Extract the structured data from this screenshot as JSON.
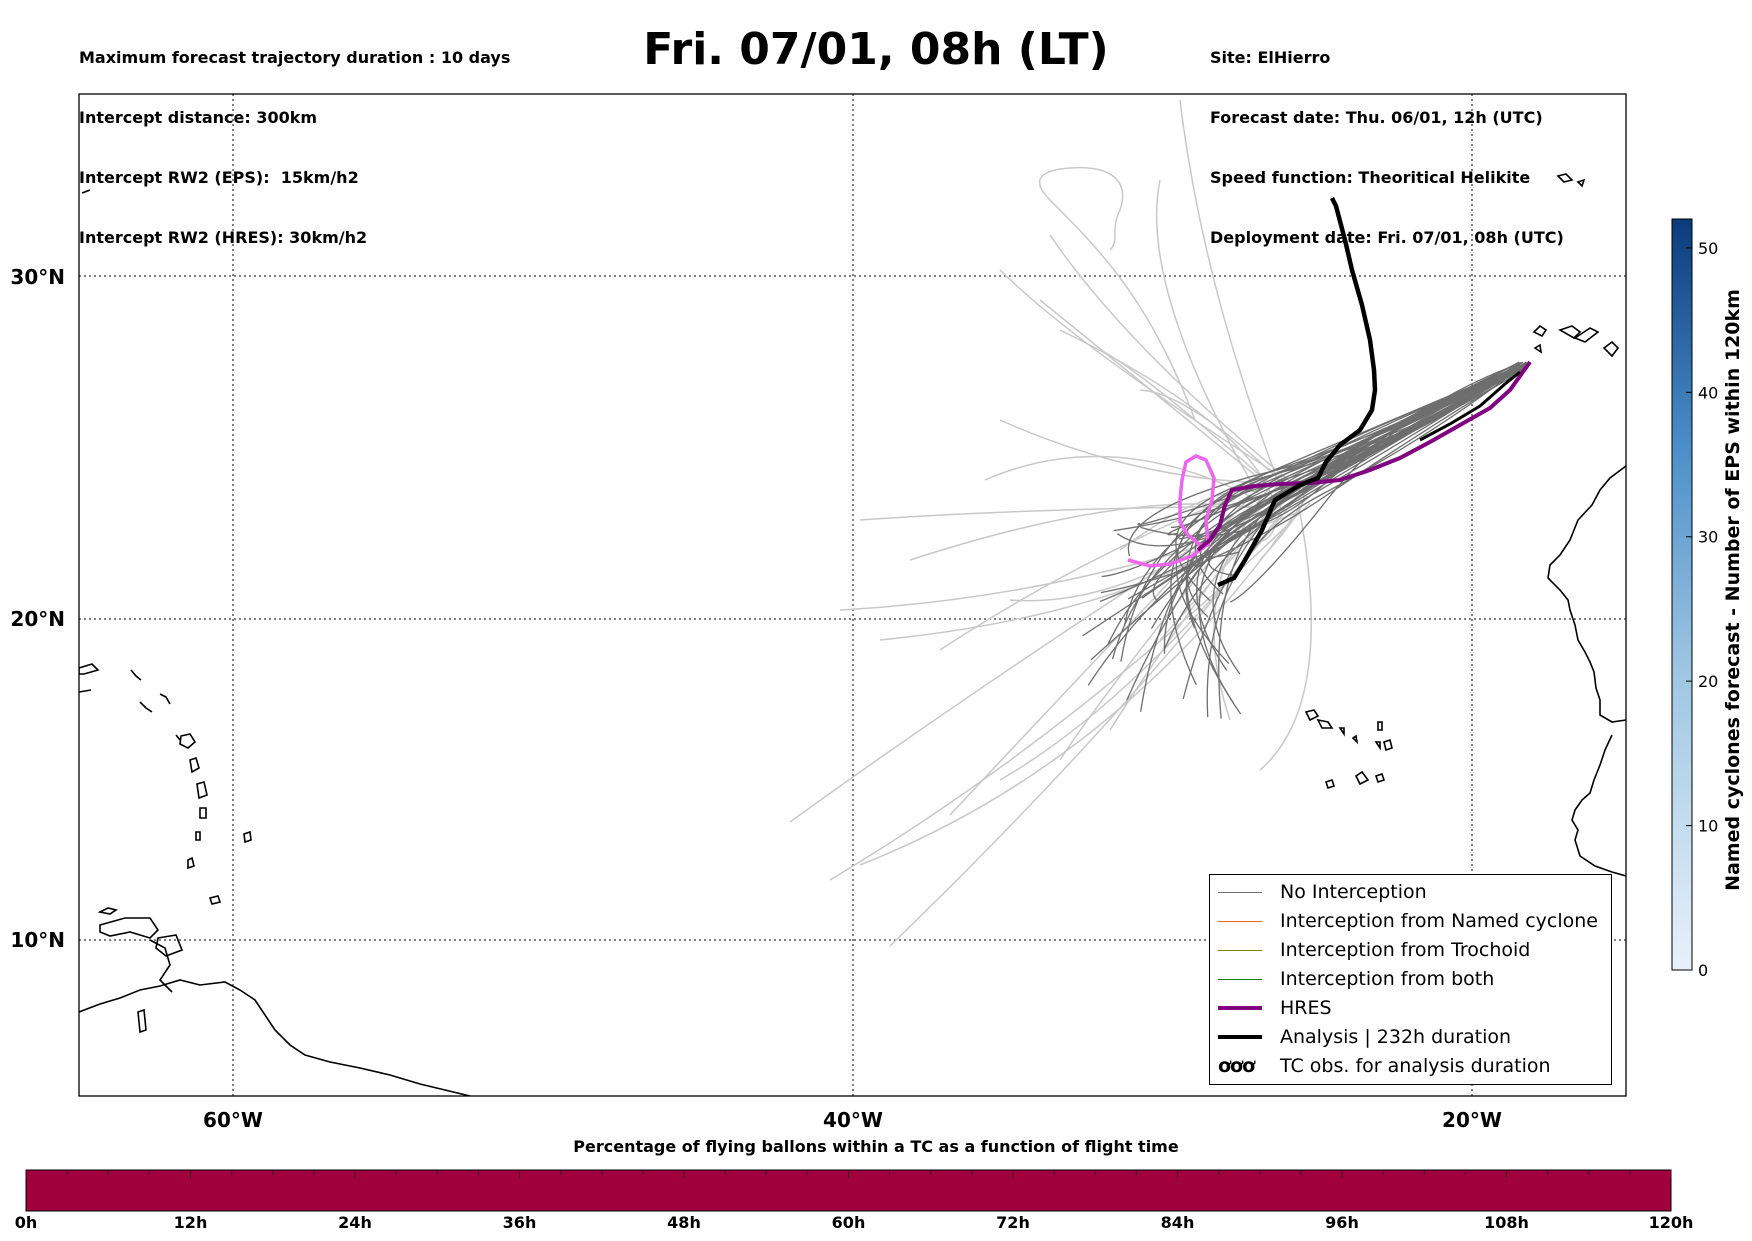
{
  "header_left": [
    "Maximum forecast trajectory duration : 10 days",
    "Intercept distance: 300km",
    "Intercept RW2 (EPS):  15km/h2",
    "Intercept RW2 (HRES): 30km/h2"
  ],
  "title": "Fri. 07/01, 08h (LT)",
  "header_right": [
    "Site: ElHierro",
    "Forecast date: Thu. 06/01, 12h (UTC)",
    "Speed function: Theoritical Helikite",
    "Deployment date: Fri. 07/01, 08h (UTC)"
  ],
  "map": {
    "lat_labels": [
      "30°N",
      "20°N",
      "10°N"
    ],
    "lon_labels": [
      "60°W",
      "40°W",
      "20°W"
    ],
    "grid_lines": "dotted"
  },
  "legend": [
    {
      "label": "No Interception",
      "color": "#6e6e6e"
    },
    {
      "label": "Interception from Named cyclone",
      "color": "#e8641e"
    },
    {
      "label": "Interception from Trochoid",
      "color": "#808000"
    },
    {
      "label": "Interception from both",
      "color": "#1a7a1a"
    },
    {
      "label": "HRES",
      "color": "#800080"
    },
    {
      "label": "Analysis | 232h duration",
      "color": "#000000"
    },
    {
      "label": "TC obs. for analysis duration",
      "icon": "tc-symbol-icon"
    }
  ],
  "legend_tc_glyph": "ơơơ",
  "colorbar": {
    "title": "Named cyclones forecast - Number of EPS within 120km",
    "ticks": [
      "0",
      "10",
      "20",
      "30",
      "40",
      "50"
    ],
    "color_low": "#e8f1fa",
    "color_high": "#0b3b7a"
  },
  "percentage_bar": {
    "title": "Percentage of flying ballons within a TC as a function of flight time",
    "ticks": [
      "0h",
      "12h",
      "24h",
      "36h",
      "48h",
      "60h",
      "72h",
      "84h",
      "96h",
      "108h",
      "120h"
    ],
    "color": "#a0003e"
  },
  "colors": {
    "eps_light": "#c8c8c8",
    "eps_dark": "#6e6e6e",
    "hres": "#800080",
    "hres_light": "#ee66ee",
    "analysis": "#000000"
  }
}
